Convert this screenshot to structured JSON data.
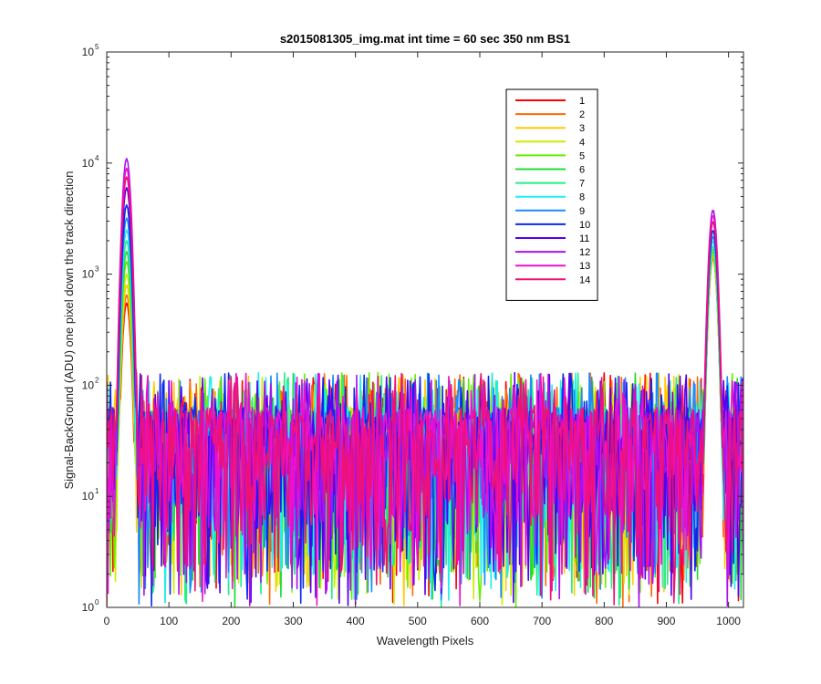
{
  "chart_data": {
    "type": "line",
    "title": "s2015081305_img.mat int time = 60 sec  350 nm BS1",
    "xlabel": "Wavelength Pixels",
    "ylabel": "Signal-BackGround (ADU) one pixel down the track direction",
    "xlim": [
      0,
      1024
    ],
    "ylim": [
      1,
      100000
    ],
    "yscale": "log",
    "grid": false,
    "legend_position": "top-right",
    "x_ticks": [
      "0",
      "100",
      "200",
      "300",
      "400",
      "500",
      "600",
      "700",
      "800",
      "900",
      "1000"
    ],
    "y_ticks": [
      {
        "base": "10",
        "exp": "0"
      },
      {
        "base": "10",
        "exp": "1"
      },
      {
        "base": "10",
        "exp": "2"
      },
      {
        "base": "10",
        "exp": "3"
      },
      {
        "base": "10",
        "exp": "4"
      },
      {
        "base": "10",
        "exp": "5"
      }
    ],
    "noise_floor": {
      "x_range": [
        0,
        1024
      ],
      "y_range": [
        1,
        130
      ],
      "typical": 30
    },
    "series": [
      {
        "name": "1",
        "color": "#ff0000",
        "peaks": [
          {
            "x": 32,
            "y": 550
          },
          {
            "x": 975,
            "y": 1400
          }
        ]
      },
      {
        "name": "2",
        "color": "#ff6a00",
        "peaks": [
          {
            "x": 32,
            "y": 650
          },
          {
            "x": 975,
            "y": 1450
          }
        ]
      },
      {
        "name": "3",
        "color": "#ffcc00",
        "peaks": [
          {
            "x": 32,
            "y": 800
          },
          {
            "x": 975,
            "y": 1450
          }
        ]
      },
      {
        "name": "4",
        "color": "#ccee00",
        "peaks": [
          {
            "x": 32,
            "y": 1000
          },
          {
            "x": 975,
            "y": 1500
          }
        ]
      },
      {
        "name": "5",
        "color": "#66ee00",
        "peaks": [
          {
            "x": 32,
            "y": 1300
          },
          {
            "x": 975,
            "y": 1600
          }
        ]
      },
      {
        "name": "6",
        "color": "#22dd33",
        "peaks": [
          {
            "x": 32,
            "y": 1600
          },
          {
            "x": 975,
            "y": 1700
          }
        ]
      },
      {
        "name": "7",
        "color": "#22ee88",
        "peaks": [
          {
            "x": 32,
            "y": 2000
          },
          {
            "x": 975,
            "y": 1800
          }
        ]
      },
      {
        "name": "8",
        "color": "#22eeee",
        "peaks": [
          {
            "x": 32,
            "y": 2500
          },
          {
            "x": 975,
            "y": 2000
          }
        ]
      },
      {
        "name": "9",
        "color": "#1a8cff",
        "peaks": [
          {
            "x": 32,
            "y": 3200
          },
          {
            "x": 975,
            "y": 2200
          }
        ]
      },
      {
        "name": "10",
        "color": "#0a2aee",
        "peaks": [
          {
            "x": 32,
            "y": 4200
          },
          {
            "x": 975,
            "y": 2500
          }
        ]
      },
      {
        "name": "11",
        "color": "#5500ee",
        "peaks": [
          {
            "x": 32,
            "y": 6000
          },
          {
            "x": 975,
            "y": 3000
          }
        ]
      },
      {
        "name": "12",
        "color": "#aa11ee",
        "peaks": [
          {
            "x": 32,
            "y": 11000
          },
          {
            "x": 975,
            "y": 3800
          }
        ]
      },
      {
        "name": "13",
        "color": "#ee11cc",
        "peaks": [
          {
            "x": 32,
            "y": 9000
          },
          {
            "x": 975,
            "y": 3400
          }
        ]
      },
      {
        "name": "14",
        "color": "#ee1177",
        "peaks": [
          {
            "x": 32,
            "y": 7500
          },
          {
            "x": 975,
            "y": 3000
          }
        ]
      }
    ]
  }
}
